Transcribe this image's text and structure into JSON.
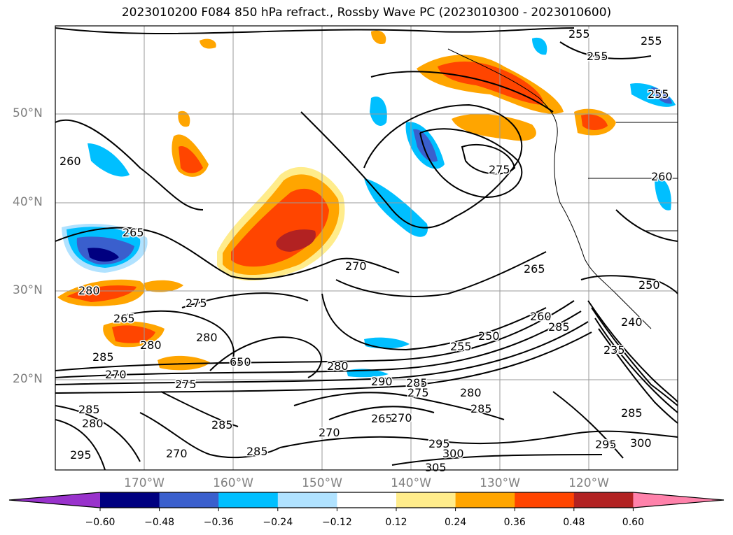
{
  "title": "2023010200 F084 850 hPa refract., Rossby Wave PC (2023010300 - 2023010600)",
  "lat_labels": [
    "50°N",
    "40°N",
    "30°N",
    "20°N"
  ],
  "lon_labels": [
    "170°W",
    "160°W",
    "150°W",
    "140°W",
    "130°W",
    "120°W"
  ],
  "colorbar": {
    "colors": [
      "#9932CC",
      "#000080",
      "#3A5FCD",
      "#00BFFF",
      "#B0E2FF",
      "#FFFFFF",
      "#FFEC8B",
      "#FFA500",
      "#FF4500",
      "#B22222",
      "#FF82AB"
    ],
    "labels": [
      "−0.60",
      "−0.48",
      "−0.36",
      "−0.24",
      "−0.12",
      "0.12",
      "0.24",
      "0.36",
      "0.48",
      "0.60"
    ]
  },
  "contour_labels": [
    "255",
    "255",
    "255",
    "255",
    "260",
    "275",
    "260",
    "265",
    "270",
    "265",
    "250",
    "280",
    "265",
    "280",
    "280",
    "275",
    "260",
    "285",
    "255",
    "250",
    "285",
    "270",
    "650",
    "280",
    "290",
    "285",
    "275",
    "280",
    "275",
    "285",
    "285",
    "280",
    "265",
    "270",
    "285",
    "270",
    "285",
    "270",
    "295",
    "300",
    "305",
    "295",
    "300",
    "235",
    "240",
    "285",
    "295"
  ]
}
